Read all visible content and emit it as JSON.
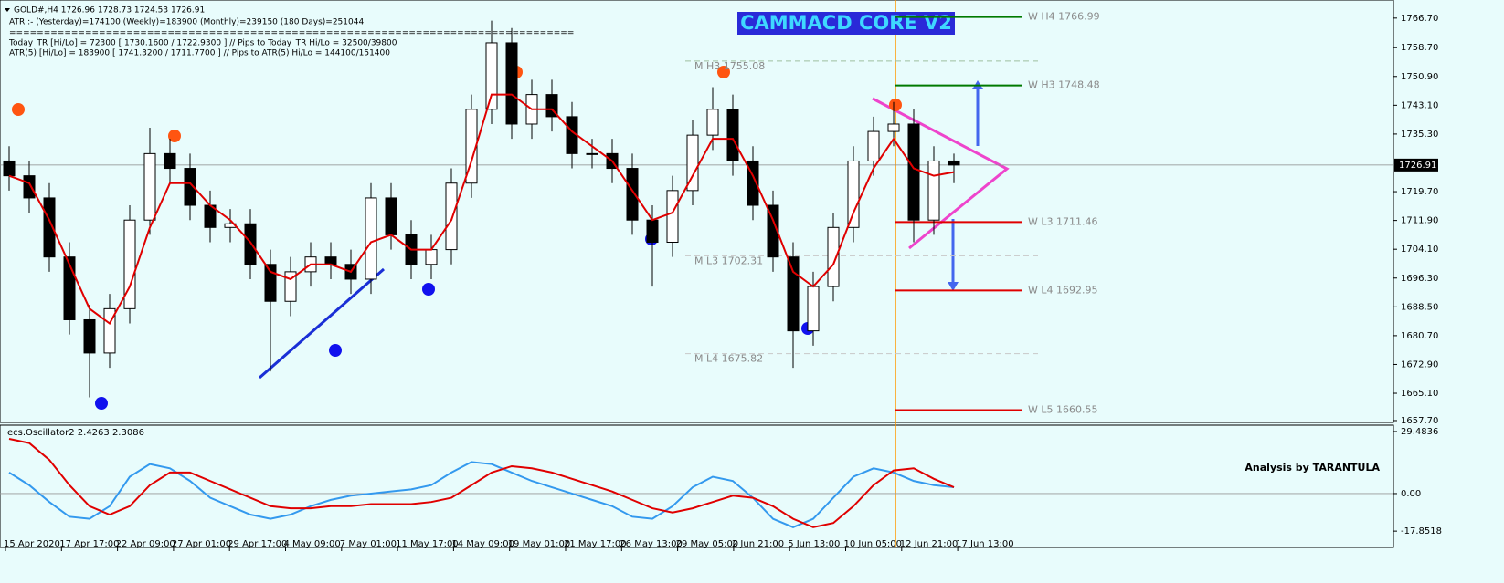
{
  "header": {
    "symbol_line": "GOLD#,H4  1726.96 1728.73 1724.53 1726.91",
    "atr_line": "ATR :- (Yesterday)=174100      (Weekly)=183900      (Monthly)=239150      (180 Days)=251044",
    "separator": "==================================================================================",
    "today_line": "Today_TR [Hi/Lo] = 72300 [ 1730.1600 / 1722.9300 ]   // Pips to Today_TR Hi/Lo  = 32500/39800",
    "atr5_line": "ATR(5)      [Hi/Lo] = 183900 [ 1741.3200 / 1711.7700 ]  //  Pips to ATR(5) Hi/Lo      = 144100/151400",
    "title": "CAMMACD CORE V2",
    "credit": "Analysis by TARANTULA"
  },
  "chart_data": [
    {
      "type": "candlestick",
      "open": [
        1728,
        1724,
        1718,
        1702,
        1685,
        1676,
        1688,
        1712,
        1730,
        1726,
        1716,
        1710,
        1711,
        1700,
        1690,
        1698,
        1702,
        1700,
        1696,
        1718,
        1708,
        1700,
        1704,
        1722,
        1742,
        1760,
        1738,
        1746,
        1740,
        1730,
        1730,
        1726,
        1712,
        1706,
        1720,
        1735,
        1742,
        1728,
        1716,
        1702,
        1682,
        1694,
        1710,
        1728,
        1736,
        1738,
        1712,
        1728
      ],
      "high": [
        1732,
        1728,
        1722,
        1706,
        1689,
        1692,
        1716,
        1737,
        1734,
        1730,
        1720,
        1715,
        1715,
        1704,
        1702,
        1706,
        1706,
        1704,
        1722,
        1722,
        1712,
        1708,
        1726,
        1746,
        1766,
        1764,
        1750,
        1750,
        1744,
        1734,
        1734,
        1730,
        1716,
        1724,
        1739,
        1748,
        1746,
        1732,
        1720,
        1706,
        1698,
        1714,
        1732,
        1740,
        1744,
        1742,
        1732,
        1730
      ],
      "low": [
        1720,
        1714,
        1698,
        1681,
        1664,
        1672,
        1684,
        1708,
        1722,
        1712,
        1706,
        1706,
        1696,
        1671,
        1686,
        1694,
        1696,
        1692,
        1692,
        1704,
        1696,
        1696,
        1700,
        1718,
        1738,
        1734,
        1734,
        1736,
        1726,
        1726,
        1722,
        1708,
        1694,
        1702,
        1716,
        1731,
        1724,
        1712,
        1698,
        1672,
        1678,
        1690,
        1706,
        1724,
        1732,
        1706,
        1708,
        1722
      ],
      "close": [
        1724,
        1718,
        1702,
        1685,
        1676,
        1688,
        1712,
        1730,
        1726,
        1716,
        1710,
        1711,
        1700,
        1690,
        1698,
        1702,
        1700,
        1696,
        1718,
        1708,
        1700,
        1704,
        1722,
        1742,
        1760,
        1738,
        1746,
        1740,
        1730,
        1730,
        1726,
        1712,
        1706,
        1720,
        1735,
        1742,
        1728,
        1716,
        1702,
        1682,
        1694,
        1710,
        1728,
        1736,
        1738,
        1712,
        1728,
        1726.91
      ],
      "series": [
        {
          "color": "#e00000",
          "values": [
            1724,
            1722,
            1712,
            1700,
            1688,
            1684,
            1694,
            1710,
            1722,
            1722,
            1716,
            1712,
            1706,
            1698,
            1696,
            1700,
            1700,
            1698,
            1706,
            1708,
            1704,
            1704,
            1712,
            1728,
            1746,
            1746,
            1742,
            1742,
            1736,
            1732,
            1728,
            1720,
            1712,
            1714,
            1724,
            1734,
            1734,
            1724,
            1712,
            1698,
            1694,
            1700,
            1714,
            1726,
            1734,
            1726,
            1724,
            1725
          ]
        }
      ],
      "last_price": 1726.91,
      "x_labels": [
        "15 Apr 2020",
        "17 Apr 17:00",
        "22 Apr 09:00",
        "27 Apr 01:00",
        "29 Apr 17:00",
        "4 May 09:00",
        "7 May 01:00",
        "11 May 17:00",
        "14 May 09:00",
        "19 May 01:00",
        "21 May 17:00",
        "26 May 13:00",
        "29 May 05:00",
        "2 Jun 21:00",
        "5 Jun 13:00",
        "10 Jun 05:00",
        "12 Jun 21:00",
        "17 Jun 13:00"
      ],
      "levels": [
        {
          "label": "W H4 1766.99",
          "value": 1766.99,
          "color": "#007a00"
        },
        {
          "label": "W H3 1748.48",
          "value": 1748.48,
          "color": "#007a00"
        },
        {
          "label": "W L3 1711.46",
          "value": 1711.46,
          "color": "#e00000"
        },
        {
          "label": "W L4 1692.95",
          "value": 1692.95,
          "color": "#e00000"
        },
        {
          "label": "W L5 1660.55",
          "value": 1660.55,
          "color": "#e00000"
        },
        {
          "label": "M H3 1755.08",
          "value": 1755.08,
          "color": "#9fbf9f"
        },
        {
          "label": "M L3 1702.31",
          "value": 1702.31,
          "color": "#c8c8c8"
        },
        {
          "label": "M L4 1675.82",
          "value": 1675.82,
          "color": "#c8c8c8"
        }
      ],
      "ylim": [
        1657.2,
        1771.6
      ],
      "yticks": [
        {
          "value": 1766.7,
          "label": "1766.70"
        },
        {
          "value": 1758.7,
          "label": "1758.70"
        },
        {
          "value": 1750.9,
          "label": "1750.90"
        },
        {
          "value": 1743.1,
          "label": "1743.10"
        },
        {
          "value": 1735.3,
          "label": "1735.30"
        },
        {
          "value": 1719.7,
          "label": "1719.70"
        },
        {
          "value": 1711.9,
          "label": "1711.90"
        },
        {
          "value": 1704.1,
          "label": "1704.10"
        },
        {
          "value": 1696.3,
          "label": "1696.30"
        },
        {
          "value": 1688.5,
          "label": "1688.50"
        },
        {
          "value": 1680.7,
          "label": "1680.70"
        },
        {
          "value": 1672.9,
          "label": "1672.90"
        },
        {
          "value": 1665.1,
          "label": "1665.10"
        },
        {
          "value": 1657.7,
          "label": "1657.70"
        }
      ]
    },
    {
      "type": "line",
      "title": "ecs.Oscillator2 2.4263 2.3086",
      "series": [
        {
          "color": "#3399ee",
          "values": [
            10,
            4,
            -4,
            -11,
            -12,
            -6,
            8,
            14,
            12,
            6,
            -2,
            -6,
            -10,
            -12,
            -10,
            -6,
            -3,
            -1,
            0,
            1,
            2,
            4,
            10,
            15,
            14,
            10,
            6,
            3,
            0,
            -3,
            -6,
            -11,
            -12,
            -6,
            3,
            8,
            6,
            -2,
            -12,
            -16,
            -12,
            -2,
            8,
            12,
            10,
            6,
            4,
            3
          ]
        },
        {
          "color": "#e00000",
          "values": [
            26,
            24,
            16,
            4,
            -6,
            -10,
            -6,
            4,
            10,
            10,
            6,
            2,
            -2,
            -6,
            -7,
            -7,
            -6,
            -6,
            -5,
            -5,
            -5,
            -4,
            -2,
            4,
            10,
            13,
            12,
            10,
            7,
            4,
            1,
            -3,
            -7,
            -9,
            -7,
            -4,
            -1,
            -2,
            -6,
            -12,
            -16,
            -14,
            -6,
            4,
            11,
            12,
            7,
            3
          ]
        }
      ],
      "ylim": [
        -25.6,
        32.5
      ],
      "yticks": [
        29.4836,
        {
          "value": 0,
          "label": "0.00"
        },
        -17.8518
      ]
    }
  ]
}
